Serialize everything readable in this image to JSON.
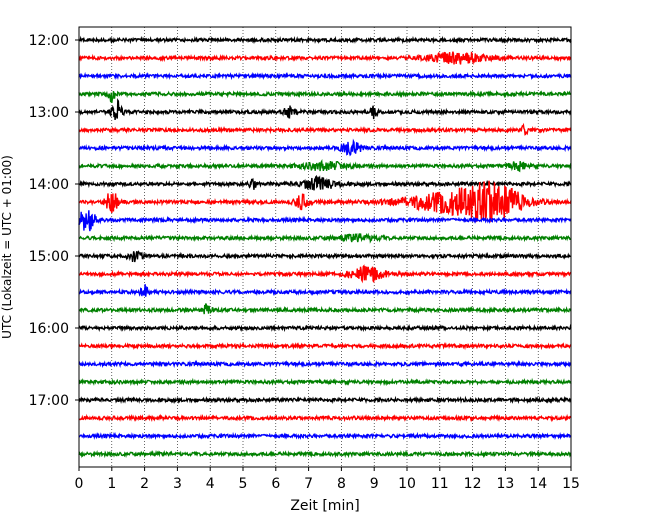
{
  "chart_data": {
    "type": "line",
    "subtype": "helicorder",
    "xlabel": "Zeit  [min]",
    "ylabel": "UTC (Lokalzeit = UTC + 01:00)",
    "xlim": [
      0,
      15
    ],
    "x_ticks": [
      "0",
      "1",
      "2",
      "3",
      "4",
      "5",
      "6",
      "7",
      "8",
      "9",
      "10",
      "11",
      "12",
      "13",
      "14",
      "15"
    ],
    "y_tick_labels": [
      "12:00",
      "13:00",
      "14:00",
      "15:00",
      "16:00",
      "17:00"
    ],
    "grid": "vertical dotted at each minute",
    "line_colors": [
      "#000000",
      "#ff0000",
      "#0000ff",
      "#008000"
    ],
    "rows_per_hour": 4,
    "minutes_per_row": 15,
    "rows": [
      {
        "start": "12:00",
        "color": "#000000",
        "events": []
      },
      {
        "start": "12:15",
        "color": "#ff0000",
        "events": [
          {
            "x": 11.5,
            "amp": 5,
            "width": 0.9
          }
        ]
      },
      {
        "start": "12:30",
        "color": "#0000ff",
        "events": []
      },
      {
        "start": "12:45",
        "color": "#008000",
        "events": [
          {
            "x": 1.0,
            "amp": 8,
            "width": 0.1
          }
        ]
      },
      {
        "start": "13:00",
        "color": "#000000",
        "events": [
          {
            "x": 1.15,
            "amp": 12,
            "width": 0.15
          },
          {
            "x": 6.4,
            "amp": 5,
            "width": 0.2
          },
          {
            "x": 9.0,
            "amp": 8,
            "width": 0.08
          }
        ]
      },
      {
        "start": "13:15",
        "color": "#ff0000",
        "events": [
          {
            "x": 13.6,
            "amp": 5,
            "width": 0.1
          }
        ]
      },
      {
        "start": "13:30",
        "color": "#0000ff",
        "events": [
          {
            "x": 8.3,
            "amp": 6,
            "width": 0.3
          }
        ]
      },
      {
        "start": "13:45",
        "color": "#008000",
        "events": [
          {
            "x": 7.5,
            "amp": 4,
            "width": 0.7
          },
          {
            "x": 13.4,
            "amp": 4,
            "width": 0.3
          }
        ]
      },
      {
        "start": "14:00",
        "color": "#000000",
        "events": [
          {
            "x": 5.3,
            "amp": 6,
            "width": 0.1
          },
          {
            "x": 7.3,
            "amp": 6,
            "width": 0.5
          }
        ]
      },
      {
        "start": "14:15",
        "color": "#ff0000",
        "events": [
          {
            "x": 1.0,
            "amp": 10,
            "width": 0.2
          },
          {
            "x": 6.8,
            "amp": 7,
            "width": 0.2
          },
          {
            "x": 11.3,
            "amp": 9,
            "width": 1.5
          },
          {
            "x": 12.6,
            "amp": 16,
            "width": 0.9
          }
        ]
      },
      {
        "start": "14:30",
        "color": "#0000ff",
        "events": [
          {
            "x": 0.25,
            "amp": 12,
            "width": 0.25
          }
        ]
      },
      {
        "start": "14:45",
        "color": "#008000",
        "events": [
          {
            "x": 8.5,
            "amp": 3,
            "width": 0.6
          }
        ]
      },
      {
        "start": "15:00",
        "color": "#000000",
        "events": [
          {
            "x": 1.7,
            "amp": 5,
            "width": 0.2
          }
        ]
      },
      {
        "start": "15:15",
        "color": "#ff0000",
        "events": [
          {
            "x": 8.8,
            "amp": 7,
            "width": 0.5
          }
        ]
      },
      {
        "start": "15:30",
        "color": "#0000ff",
        "events": [
          {
            "x": 2.0,
            "amp": 7,
            "width": 0.12
          }
        ]
      },
      {
        "start": "15:45",
        "color": "#008000",
        "events": [
          {
            "x": 3.9,
            "amp": 6,
            "width": 0.12
          }
        ]
      },
      {
        "start": "16:00",
        "color": "#000000",
        "events": []
      },
      {
        "start": "16:15",
        "color": "#ff0000",
        "events": []
      },
      {
        "start": "16:30",
        "color": "#0000ff",
        "events": []
      },
      {
        "start": "16:45",
        "color": "#008000",
        "events": []
      },
      {
        "start": "17:00",
        "color": "#000000",
        "events": []
      },
      {
        "start": "17:15",
        "color": "#ff0000",
        "events": []
      },
      {
        "start": "17:30",
        "color": "#0000ff",
        "events": []
      },
      {
        "start": "17:45",
        "color": "#008000",
        "events": []
      }
    ]
  }
}
